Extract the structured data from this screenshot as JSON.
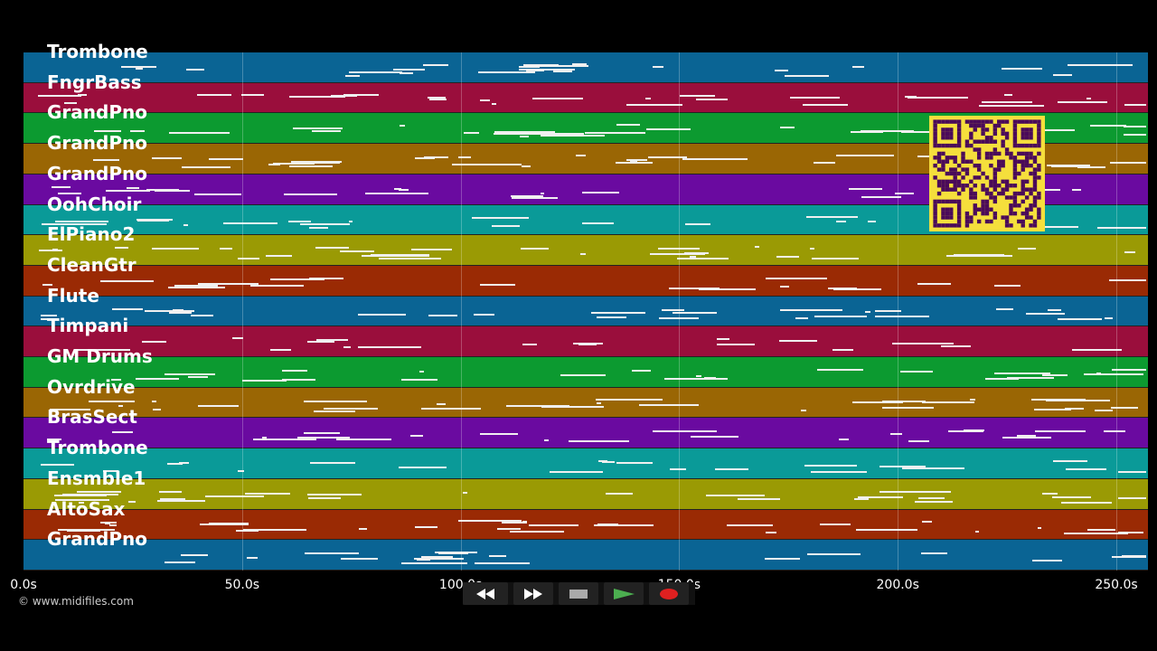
{
  "tracks": [
    {
      "name": "Trombone",
      "color": "#0a6494"
    },
    {
      "name": "FngrBass",
      "color": "#9a0e3c"
    },
    {
      "name": "GrandPno",
      "color": "#0c9a30"
    },
    {
      "name": "GrandPno",
      "color": "#9a6604"
    },
    {
      "name": "GrandPno",
      "color": "#6a0aa0"
    },
    {
      "name": "OohChoir",
      "color": "#0a9a98"
    },
    {
      "name": "ElPiano2",
      "color": "#9a9a04"
    },
    {
      "name": "CleanGtr",
      "color": "#9a2a04"
    },
    {
      "name": "Flute",
      "color": "#0a6494"
    },
    {
      "name": "Timpani",
      "color": "#9a0e3c"
    },
    {
      "name": "GM Drums",
      "color": "#0c9a30"
    },
    {
      "name": "Ovrdrive",
      "color": "#9a6604"
    },
    {
      "name": "BrasSect",
      "color": "#6a0aa0"
    },
    {
      "name": "Trombone",
      "color": "#0a9a98"
    },
    {
      "name": "Ensmble1",
      "color": "#9a9a04"
    },
    {
      "name": "AltoSax",
      "color": "#9a2a04"
    },
    {
      "name": "GrandPno",
      "color": "#0a6494"
    }
  ],
  "timeline": {
    "ticks": [
      "0.0s",
      "50.0s",
      "100.0s",
      "150.0s",
      "200.0s",
      "250.0s"
    ],
    "tick_seconds": [
      0,
      50,
      100,
      150,
      200,
      250
    ],
    "max_seconds": 257
  },
  "copyright": "© www.midifiles.com",
  "transport": {
    "buttons": [
      {
        "name": "rewind-button",
        "icon": "rewind-icon"
      },
      {
        "name": "fast-forward-button",
        "icon": "fast-forward-icon"
      },
      {
        "name": "stop-button",
        "icon": "stop-icon"
      },
      {
        "name": "play-button",
        "icon": "play-icon",
        "color": "#4caf50"
      },
      {
        "name": "record-button",
        "icon": "record-icon",
        "color": "#e02020"
      }
    ]
  },
  "qr_code": {
    "color": "#f5df3c",
    "dark": "#4a0a5a"
  }
}
